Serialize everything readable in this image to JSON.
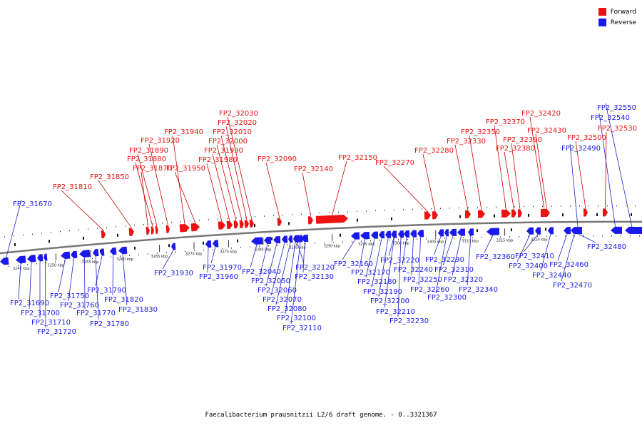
{
  "title": "Faecalibacterium prausnitzii L2/6 draft genome. - 0..3321367",
  "legend": [
    {
      "label": "Forward",
      "color": "#ee1111"
    },
    {
      "label": "Reverse",
      "color": "#1a1aee"
    }
  ],
  "colors": {
    "forward": "#ee1111",
    "reverse": "#1a1aee",
    "backbone": "#777777",
    "leader_forward": "#cc0000",
    "leader_reverse": "#2222cc"
  },
  "ticks": [
    {
      "label": "3245 kbp",
      "kbp": 3245
    },
    {
      "label": "3250 kbp",
      "kbp": 3250
    },
    {
      "label": "3255 kbp",
      "kbp": 3255
    },
    {
      "label": "3260 kbp",
      "kbp": 3260
    },
    {
      "label": "3265 kbp",
      "kbp": 3265
    },
    {
      "label": "3270 kbp",
      "kbp": 3270
    },
    {
      "label": "3275 kbp",
      "kbp": 3275
    },
    {
      "label": "3280 kbp",
      "kbp": 3280
    },
    {
      "label": "3285 kbp",
      "kbp": 3285
    },
    {
      "label": "3290 kbp",
      "kbp": 3290
    },
    {
      "label": "3295 kbp",
      "kbp": 3295
    },
    {
      "label": "3300 kbp",
      "kbp": 3300
    },
    {
      "label": "3305 kbp",
      "kbp": 3305
    },
    {
      "label": "3310 kbp",
      "kbp": 3310
    },
    {
      "label": "3315 kbp",
      "kbp": 3315
    },
    {
      "label": "3320 kbp",
      "kbp": 3320
    }
  ],
  "genes": [
    {
      "name": "FP2_31670",
      "strand": "reverse"
    },
    {
      "name": "FP2_31690",
      "strand": "reverse"
    },
    {
      "name": "FP2_31700",
      "strand": "reverse"
    },
    {
      "name": "FP2_31710",
      "strand": "reverse"
    },
    {
      "name": "FP2_31720",
      "strand": "reverse"
    },
    {
      "name": "FP2_31750",
      "strand": "reverse"
    },
    {
      "name": "FP2_31760",
      "strand": "reverse"
    },
    {
      "name": "FP2_31770",
      "strand": "reverse"
    },
    {
      "name": "FP2_31780",
      "strand": "reverse"
    },
    {
      "name": "FP2_31790",
      "strand": "reverse"
    },
    {
      "name": "FP2_31810",
      "strand": "forward"
    },
    {
      "name": "FP2_31820",
      "strand": "reverse"
    },
    {
      "name": "FP2_31830",
      "strand": "reverse"
    },
    {
      "name": "FP2_31850",
      "strand": "forward"
    },
    {
      "name": "FP2_31870",
      "strand": "forward"
    },
    {
      "name": "FP2_31880",
      "strand": "forward"
    },
    {
      "name": "FP2_31890",
      "strand": "forward"
    },
    {
      "name": "FP2_31920",
      "strand": "forward"
    },
    {
      "name": "FP2_31930",
      "strand": "reverse"
    },
    {
      "name": "FP2_31940",
      "strand": "forward"
    },
    {
      "name": "FP2_31950",
      "strand": "forward"
    },
    {
      "name": "FP2_31960",
      "strand": "reverse"
    },
    {
      "name": "FP2_31970",
      "strand": "reverse"
    },
    {
      "name": "FP2_31980",
      "strand": "forward"
    },
    {
      "name": "FP2_31990",
      "strand": "forward"
    },
    {
      "name": "FP2_32000",
      "strand": "forward"
    },
    {
      "name": "FP2_32010",
      "strand": "forward"
    },
    {
      "name": "FP2_32020",
      "strand": "forward"
    },
    {
      "name": "FP2_32030",
      "strand": "forward"
    },
    {
      "name": "FP2_32040",
      "strand": "reverse"
    },
    {
      "name": "FP2_32050",
      "strand": "reverse"
    },
    {
      "name": "FP2_32060",
      "strand": "reverse"
    },
    {
      "name": "FP2_32070",
      "strand": "reverse"
    },
    {
      "name": "FP2_32080",
      "strand": "reverse"
    },
    {
      "name": "FP2_32090",
      "strand": "forward"
    },
    {
      "name": "FP2_32100",
      "strand": "reverse"
    },
    {
      "name": "FP2_32110",
      "strand": "reverse"
    },
    {
      "name": "FP2_32120",
      "strand": "reverse"
    },
    {
      "name": "FP2_32130",
      "strand": "reverse"
    },
    {
      "name": "FP2_32140",
      "strand": "forward"
    },
    {
      "name": "FP2_32150",
      "strand": "forward"
    },
    {
      "name": "FP2_32160",
      "strand": "reverse"
    },
    {
      "name": "FP2_32170",
      "strand": "reverse"
    },
    {
      "name": "FP2_32180",
      "strand": "reverse"
    },
    {
      "name": "FP2_32190",
      "strand": "reverse"
    },
    {
      "name": "FP2_32200",
      "strand": "reverse"
    },
    {
      "name": "FP2_32210",
      "strand": "reverse"
    },
    {
      "name": "FP2_32220",
      "strand": "reverse"
    },
    {
      "name": "FP2_32230",
      "strand": "reverse"
    },
    {
      "name": "FP2_32240",
      "strand": "reverse"
    },
    {
      "name": "FP2_32250",
      "strand": "reverse"
    },
    {
      "name": "FP2_32260",
      "strand": "reverse"
    },
    {
      "name": "FP2_32270",
      "strand": "forward"
    },
    {
      "name": "FP2_32280",
      "strand": "forward"
    },
    {
      "name": "FP2_32290",
      "strand": "reverse"
    },
    {
      "name": "FP2_32300",
      "strand": "reverse"
    },
    {
      "name": "FP2_32310",
      "strand": "reverse"
    },
    {
      "name": "FP2_32320",
      "strand": "reverse"
    },
    {
      "name": "FP2_32330",
      "strand": "forward"
    },
    {
      "name": "FP2_32340",
      "strand": "reverse"
    },
    {
      "name": "FP2_32350",
      "strand": "forward"
    },
    {
      "name": "FP2_32360",
      "strand": "reverse"
    },
    {
      "name": "FP2_32370",
      "strand": "forward"
    },
    {
      "name": "FP2_32380",
      "strand": "forward"
    },
    {
      "name": "FP2_32390",
      "strand": "forward"
    },
    {
      "name": "FP2_32400",
      "strand": "reverse"
    },
    {
      "name": "FP2_32410",
      "strand": "reverse"
    },
    {
      "name": "FP2_32420",
      "strand": "forward"
    },
    {
      "name": "FP2_32430",
      "strand": "forward"
    },
    {
      "name": "FP2_32440",
      "strand": "reverse"
    },
    {
      "name": "FP2_32460",
      "strand": "reverse"
    },
    {
      "name": "FP2_32470",
      "strand": "reverse"
    },
    {
      "name": "FP2_32480",
      "strand": "reverse"
    },
    {
      "name": "FP2_32490",
      "strand": "reverse"
    },
    {
      "name": "FP2_32500",
      "strand": "forward"
    },
    {
      "name": "FP2_32530",
      "strand": "forward"
    },
    {
      "name": "FP2_32540",
      "strand": "reverse"
    },
    {
      "name": "FP2_32550",
      "strand": "reverse"
    }
  ]
}
